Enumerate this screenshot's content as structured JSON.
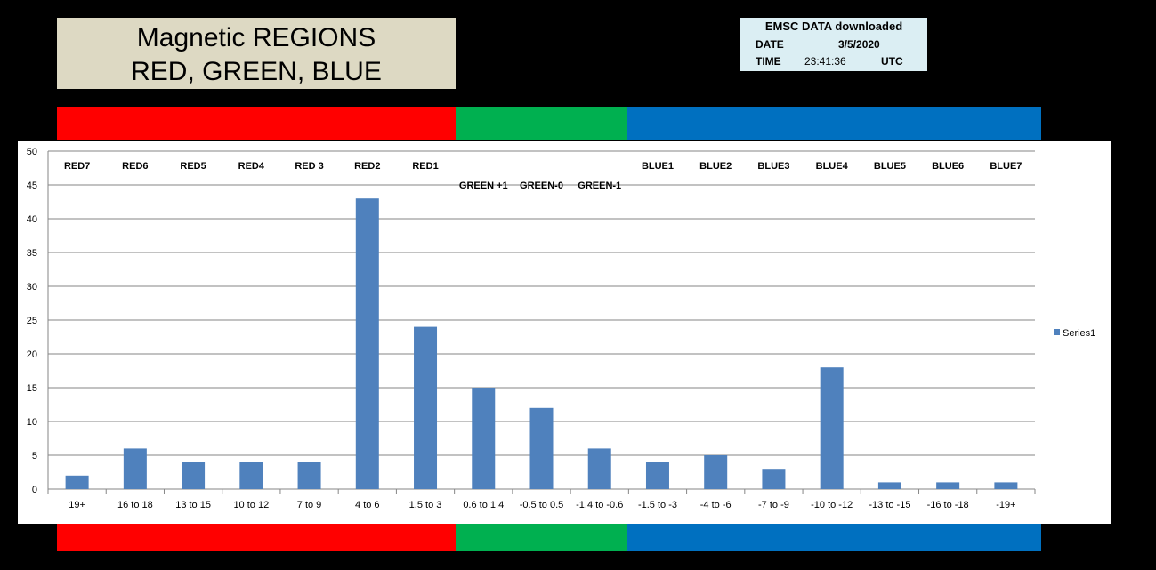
{
  "header": {
    "title_line1": "Magnetic REGIONS",
    "title_line2": "RED, GREEN, BLUE"
  },
  "info": {
    "heading": "EMSC DATA downloaded",
    "date_label": "DATE",
    "date_value": "3/5/2020",
    "time_label": "TIME",
    "time_value": "23:41:36",
    "tz": "UTC"
  },
  "colors": {
    "red": "#ff0000",
    "green": "#00b050",
    "blue": "#0070c0",
    "bar": "#4f81bd"
  },
  "chart_data": {
    "type": "bar",
    "categories": [
      "19+",
      "16 to 18",
      "13 to 15",
      "10 to 12",
      "7 to 9",
      "4 to 6",
      "1.5 to 3",
      "0.6 to 1.4",
      "-0.5 to 0.5",
      "-1.4 to -0.6",
      "-1.5 to -3",
      "-4 to -6",
      "-7 to -9",
      "-10 to -12",
      "-13 to -15",
      "-16 to -18",
      "-19+"
    ],
    "series": [
      {
        "name": "Series1",
        "values": [
          2,
          6,
          4,
          4,
          4,
          43,
          24,
          15,
          12,
          6,
          4,
          5,
          3,
          18,
          1,
          1,
          1
        ]
      }
    ],
    "region_labels": [
      "RED7",
      "RED6",
      "RED5",
      "RED4",
      "RED 3",
      "RED2",
      "RED1",
      "GREEN +1",
      "GREEN-0",
      "GREEN-1",
      "BLUE1",
      "BLUE2",
      "BLUE3",
      "BLUE4",
      "BLUE5",
      "BLUE6",
      "BLUE7"
    ],
    "ylim": [
      0,
      50
    ],
    "yticks": [
      0,
      5,
      10,
      15,
      20,
      25,
      30,
      35,
      40,
      45,
      50
    ],
    "grid": true,
    "legend": "right",
    "xlabel": "",
    "ylabel": ""
  }
}
